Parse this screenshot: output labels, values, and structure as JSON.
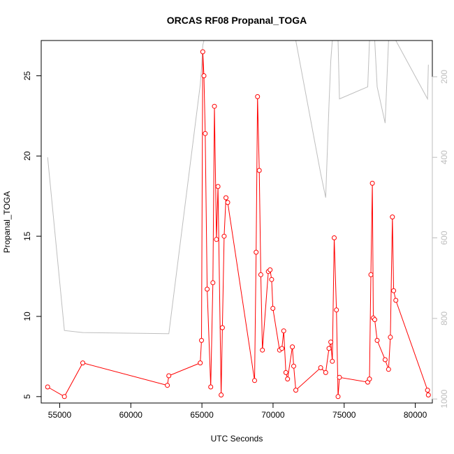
{
  "chart_data": {
    "type": "line",
    "title": "ORCAS RF08 Propanal_TOGA",
    "xlabel": "UTC Seconds",
    "ylabel": "Propanal_TOGA",
    "y2label": "",
    "xlim": [
      53700,
      81200
    ],
    "ylim": [
      4.6,
      27.2
    ],
    "y2lim": [
      1010,
      110
    ],
    "y2_reversed": true,
    "x_ticks": [
      55000,
      60000,
      65000,
      70000,
      75000,
      80000
    ],
    "y_ticks": [
      5,
      10,
      15,
      20,
      25
    ],
    "y2_ticks": [
      200,
      400,
      600,
      800,
      1000
    ],
    "colors": {
      "series": "#ff0000",
      "secondary": "#bebebe",
      "frame": "#000000"
    },
    "series": [
      {
        "name": "",
        "axis": "left",
        "style": "line-with-open-circles",
        "x": [
          54150,
          55330,
          56620,
          62570,
          62670,
          64880,
          64970,
          65060,
          65140,
          65230,
          65370,
          65620,
          65770,
          65880,
          66020,
          66130,
          66350,
          66440,
          66560,
          66690,
          66810,
          68700,
          68810,
          68910,
          69030,
          69140,
          69250,
          69670,
          69790,
          69900,
          69990,
          70460,
          70620,
          70750,
          70900,
          71020,
          71360,
          71450,
          71600,
          73350,
          73700,
          73930,
          74060,
          74170,
          74300,
          74460,
          74570,
          74670,
          76660,
          76780,
          76880,
          76980,
          77050,
          77150,
          77320,
          77880,
          78120,
          78250,
          78390,
          78480,
          78630,
          80860,
          80920
        ],
        "y": [
          5.6,
          5.0,
          7.1,
          5.7,
          6.3,
          7.1,
          8.5,
          26.5,
          25.0,
          21.4,
          11.7,
          5.6,
          12.1,
          23.1,
          14.8,
          18.1,
          5.1,
          9.3,
          15.0,
          17.4,
          17.1,
          6.0,
          14.0,
          23.7,
          19.1,
          12.6,
          7.9,
          12.8,
          12.9,
          12.3,
          10.5,
          7.9,
          8.0,
          9.1,
          6.5,
          6.1,
          8.1,
          6.9,
          5.4,
          6.8,
          6.5,
          8.0,
          8.4,
          7.2,
          14.9,
          10.4,
          5.0,
          6.2,
          5.9,
          6.1,
          12.6,
          18.3,
          9.9,
          9.8,
          8.5,
          7.3,
          6.7,
          8.7,
          16.2,
          11.6,
          11.0,
          5.4,
          5.1
        ]
      },
      {
        "name": "",
        "axis": "right",
        "style": "line",
        "x": [
          54150,
          55330,
          56620,
          62570,
          62670,
          64880,
          64970,
          65060,
          65140,
          65230,
          65370,
          65620,
          65770,
          65880,
          66020,
          66130,
          66350,
          66440,
          66560,
          66690,
          66810,
          68700,
          68810,
          68910,
          69030,
          69140,
          69250,
          69670,
          69790,
          69900,
          69990,
          70460,
          70620,
          70750,
          70900,
          71020,
          71360,
          71450,
          71600,
          73350,
          73700,
          73930,
          74060,
          74170,
          74300,
          74460,
          74570,
          74670,
          76660,
          76780,
          76880,
          76980,
          77050,
          77150,
          77320,
          77880,
          78120,
          78250,
          78390,
          78480,
          78630,
          80860,
          80920
        ],
        "y": [
          400,
          830,
          835,
          838,
          838,
          220,
          178,
          122,
          110,
          110,
          110,
          110,
          110,
          110,
          110,
          110,
          110,
          110,
          110,
          110,
          110,
          110,
          110,
          110,
          110,
          110,
          110,
          110,
          110,
          110,
          110,
          110,
          110,
          110,
          110,
          110,
          110,
          110,
          110,
          440,
          500,
          270,
          160,
          110,
          110,
          110,
          110,
          255,
          225,
          110,
          110,
          110,
          110,
          110,
          225,
          315,
          110,
          110,
          110,
          110,
          110,
          255,
          170
        ]
      }
    ]
  }
}
